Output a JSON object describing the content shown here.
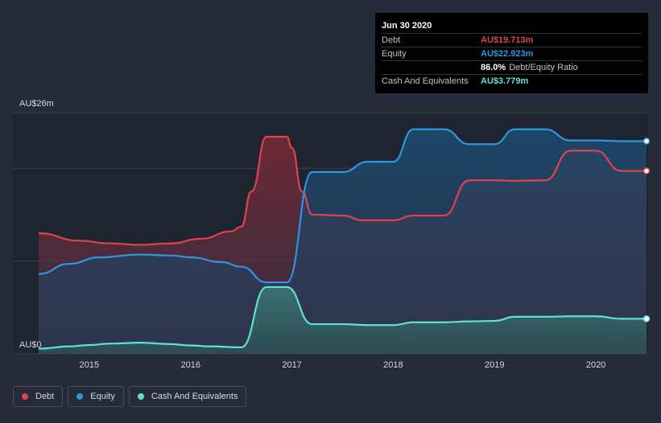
{
  "chart_data": {
    "type": "area",
    "x_ticks": [
      "2015",
      "2016",
      "2017",
      "2018",
      "2019",
      "2020"
    ],
    "y_tick_labels": [
      "AU$26m",
      "AU$0"
    ],
    "ylim": [
      0,
      26
    ],
    "xlim": [
      2014.5,
      2020.5
    ],
    "grid": true,
    "series": [
      {
        "name": "Debt",
        "color": "#e0434f",
        "x": [
          2014.5,
          2014.9,
          2015.2,
          2015.5,
          2015.8,
          2016.1,
          2016.4,
          2016.5,
          2016.6,
          2016.75,
          2016.95,
          2017.0,
          2017.1,
          2017.2,
          2017.5,
          2017.7,
          2018.0,
          2018.2,
          2018.5,
          2018.75,
          2019.0,
          2019.2,
          2019.5,
          2019.75,
          2020.0,
          2020.25,
          2020.5
        ],
        "values": [
          13.0,
          12.2,
          11.9,
          11.75,
          11.9,
          12.4,
          13.2,
          13.7,
          17.5,
          23.4,
          23.4,
          22.2,
          17.5,
          15.0,
          14.9,
          14.4,
          14.4,
          14.9,
          14.9,
          18.7,
          18.7,
          18.65,
          18.7,
          21.9,
          21.9,
          19.713,
          19.713
        ]
      },
      {
        "name": "Equity",
        "color": "#2f96e0",
        "x": [
          2014.5,
          2014.8,
          2015.1,
          2015.5,
          2015.8,
          2016.0,
          2016.3,
          2016.5,
          2016.75,
          2016.95,
          2017.2,
          2017.5,
          2017.75,
          2018.0,
          2018.2,
          2018.5,
          2018.75,
          2019.0,
          2019.2,
          2019.5,
          2019.75,
          2020.0,
          2020.25,
          2020.5
        ],
        "values": [
          8.6,
          9.7,
          10.4,
          10.7,
          10.6,
          10.4,
          9.9,
          9.4,
          7.7,
          7.7,
          19.6,
          19.6,
          20.7,
          20.7,
          24.2,
          24.2,
          22.6,
          22.6,
          24.2,
          24.2,
          23.0,
          23.0,
          22.923,
          22.923
        ]
      },
      {
        "name": "Cash And Equivalents",
        "color": "#5ee3d2",
        "x": [
          2014.5,
          2014.8,
          2015.0,
          2015.2,
          2015.5,
          2015.8,
          2016.0,
          2016.2,
          2016.5,
          2016.75,
          2016.95,
          2017.2,
          2017.5,
          2017.75,
          2018.0,
          2018.2,
          2018.5,
          2018.75,
          2019.0,
          2019.2,
          2019.5,
          2019.75,
          2020.0,
          2020.25,
          2020.5
        ],
        "values": [
          0.55,
          0.8,
          0.95,
          1.1,
          1.2,
          1.05,
          0.9,
          0.8,
          0.7,
          7.2,
          7.2,
          3.2,
          3.2,
          3.1,
          3.1,
          3.4,
          3.4,
          3.5,
          3.55,
          4.0,
          4.0,
          4.05,
          4.05,
          3.779,
          3.779
        ]
      }
    ]
  },
  "tooltip": {
    "date": "Jun 30 2020",
    "rows": [
      {
        "label": "Debt",
        "value": "AU$19.713m",
        "color": "#e0434f"
      },
      {
        "label": "Equity",
        "value": "AU$22.923m",
        "color": "#2f96e0"
      },
      {
        "label": "",
        "value": "86.0%",
        "suffix": "Debt/Equity Ratio",
        "color": "#ffffff"
      },
      {
        "label": "Cash And Equivalents",
        "value": "AU$3.779m",
        "color": "#5ee3d2"
      }
    ]
  },
  "legend": [
    {
      "label": "Debt",
      "color": "#e0434f"
    },
    {
      "label": "Equity",
      "color": "#2f96e0"
    },
    {
      "label": "Cash And Equivalents",
      "color": "#5ee3d2"
    }
  ]
}
